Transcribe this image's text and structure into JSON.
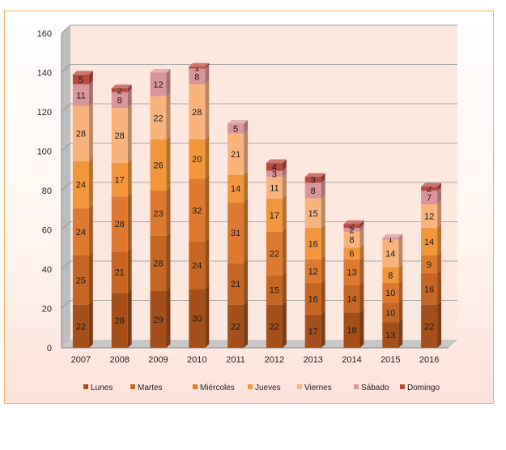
{
  "chart_data": {
    "type": "bar",
    "stacked": true,
    "three_d": true,
    "categories": [
      "2007",
      "2008",
      "2009",
      "2010",
      "2011",
      "2012",
      "2013",
      "2014",
      "2015",
      "2016"
    ],
    "ylim": [
      0,
      160
    ],
    "yticks": [
      0,
      20,
      40,
      60,
      80,
      100,
      120,
      140,
      160
    ],
    "grid": true,
    "legend_position": "bottom",
    "series": [
      {
        "name": "Lunes",
        "color": "#a5501a",
        "values": [
          22,
          28,
          29,
          30,
          22,
          22,
          17,
          18,
          13,
          22
        ]
      },
      {
        "name": "Martes",
        "color": "#c56622",
        "values": [
          25,
          21,
          28,
          24,
          21,
          15,
          16,
          14,
          10,
          16
        ]
      },
      {
        "name": "Miércoles",
        "color": "#dd7a30",
        "values": [
          24,
          28,
          23,
          32,
          31,
          22,
          12,
          13,
          10,
          9
        ]
      },
      {
        "name": "Jueves",
        "color": "#f2963c",
        "values": [
          24,
          17,
          26,
          20,
          14,
          17,
          16,
          6,
          8,
          14
        ]
      },
      {
        "name": "Viernes",
        "color": "#f9b47e",
        "values": [
          28,
          28,
          22,
          28,
          21,
          11,
          15,
          8,
          14,
          12
        ]
      },
      {
        "name": "Sábado",
        "color": "#d9959a",
        "values": [
          11,
          8,
          12,
          8,
          5,
          3,
          8,
          2,
          1,
          7
        ]
      },
      {
        "name": "Domingo",
        "color": "#b84a40",
        "values": [
          5,
          2,
          0,
          1,
          0,
          4,
          3,
          2,
          0,
          2
        ]
      }
    ]
  }
}
